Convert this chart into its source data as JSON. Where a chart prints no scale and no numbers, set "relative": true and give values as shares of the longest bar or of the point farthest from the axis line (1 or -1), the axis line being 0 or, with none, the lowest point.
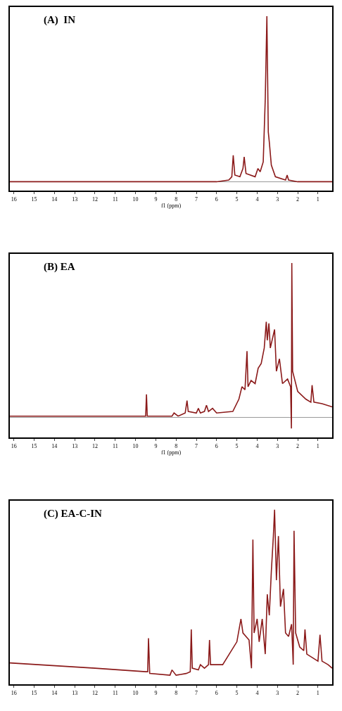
{
  "chart_data": [
    {
      "type": "line",
      "title": "(A)  IN",
      "xlabel": "f1 (ppm)",
      "relative": true,
      "xlim": [
        16.2,
        0.3
      ],
      "xticks": [
        16,
        15,
        14,
        13,
        12,
        11,
        10,
        9,
        8,
        7,
        6,
        5,
        4,
        3,
        2,
        1
      ],
      "series": [
        {
          "color": "#8b1a1a",
          "x": [
            16.2,
            6,
            5.4,
            5.25,
            5.18,
            5.1,
            4.85,
            4.7,
            4.64,
            4.55,
            4.1,
            3.96,
            3.85,
            3.7,
            3.6,
            3.52,
            3.45,
            3.4,
            3.3,
            3.1,
            2.6,
            2.52,
            2.45,
            2.0,
            0.3
          ],
          "values": [
            0,
            0,
            0.01,
            0.03,
            0.16,
            0.04,
            0.03,
            0.08,
            0.15,
            0.05,
            0.03,
            0.08,
            0.06,
            0.12,
            0.5,
            1.0,
            0.3,
            0.24,
            0.1,
            0.03,
            0.01,
            0.04,
            0.01,
            0,
            0
          ]
        }
      ]
    },
    {
      "type": "line",
      "title": "(B) EA",
      "xlabel": "f1 (ppm)",
      "relative": true,
      "xlim": [
        16.2,
        0.3
      ],
      "xticks": [
        16,
        15,
        14,
        13,
        12,
        11,
        10,
        9,
        8,
        7,
        6,
        5,
        4,
        3,
        2,
        1
      ],
      "series": [
        {
          "color": "#8b1a1a",
          "x": [
            16.2,
            10,
            9.5,
            9.46,
            9.42,
            8.2,
            8.1,
            7.9,
            7.55,
            7.46,
            7.4,
            7.0,
            6.9,
            6.8,
            6.6,
            6.5,
            6.4,
            6.2,
            6.0,
            5.2,
            4.9,
            4.75,
            4.6,
            4.5,
            4.45,
            4.3,
            4.1,
            3.95,
            3.8,
            3.65,
            3.55,
            3.5,
            3.42,
            3.35,
            3.14,
            3.05,
            2.9,
            2.75,
            2.5,
            2.35,
            2.31,
            2.29,
            2.25,
            2.0,
            1.6,
            1.35,
            1.29,
            1.2,
            0.8,
            0.3
          ],
          "values": [
            0.01,
            0.01,
            0.01,
            0.15,
            0.01,
            0.01,
            0.03,
            0.01,
            0.03,
            0.11,
            0.04,
            0.03,
            0.06,
            0.03,
            0.04,
            0.08,
            0.04,
            0.06,
            0.03,
            0.04,
            0.12,
            0.2,
            0.18,
            0.43,
            0.2,
            0.24,
            0.22,
            0.32,
            0.35,
            0.45,
            0.62,
            0.5,
            0.61,
            0.45,
            0.57,
            0.3,
            0.38,
            0.22,
            0.25,
            0.2,
            -0.07,
            1.0,
            0.3,
            0.17,
            0.12,
            0.1,
            0.21,
            0.1,
            0.09,
            0.07
          ]
        }
      ]
    },
    {
      "type": "line",
      "title": "(C) EA-C-IN",
      "relative": true,
      "xlim": [
        16.2,
        0.3
      ],
      "xticks": [
        16,
        15,
        14,
        13,
        12,
        11,
        10,
        9,
        8,
        7,
        6,
        5,
        4,
        3,
        2,
        1
      ],
      "series": [
        {
          "color": "#8b1a1a",
          "x": [
            16.2,
            12,
            9.5,
            9.4,
            9.36,
            9.3,
            8.3,
            8.2,
            8.0,
            7.5,
            7.3,
            7.25,
            7.2,
            6.9,
            6.8,
            6.6,
            6.4,
            6.35,
            6.3,
            5.7,
            5.0,
            4.8,
            4.7,
            4.4,
            4.28,
            4.21,
            4.15,
            4.0,
            3.9,
            3.75,
            3.6,
            3.5,
            3.4,
            3.3,
            3.2,
            3.14,
            3.05,
            2.95,
            2.85,
            2.7,
            2.6,
            2.45,
            2.3,
            2.22,
            2.18,
            2.1,
            1.9,
            1.7,
            1.64,
            1.55,
            1.0,
            0.9,
            0.8,
            0.5,
            0.3
          ],
          "values": [
            0.13,
            0.1,
            0.08,
            0.08,
            0.27,
            0.07,
            0.06,
            0.09,
            0.06,
            0.07,
            0.08,
            0.32,
            0.1,
            0.09,
            0.12,
            0.1,
            0.12,
            0.26,
            0.12,
            0.12,
            0.25,
            0.38,
            0.3,
            0.26,
            0.1,
            0.83,
            0.3,
            0.38,
            0.25,
            0.38,
            0.18,
            0.52,
            0.4,
            0.65,
            0.85,
            1.0,
            0.6,
            0.85,
            0.45,
            0.55,
            0.3,
            0.28,
            0.35,
            0.12,
            0.88,
            0.3,
            0.22,
            0.2,
            0.32,
            0.18,
            0.14,
            0.29,
            0.14,
            0.12,
            0.1
          ]
        }
      ]
    }
  ]
}
